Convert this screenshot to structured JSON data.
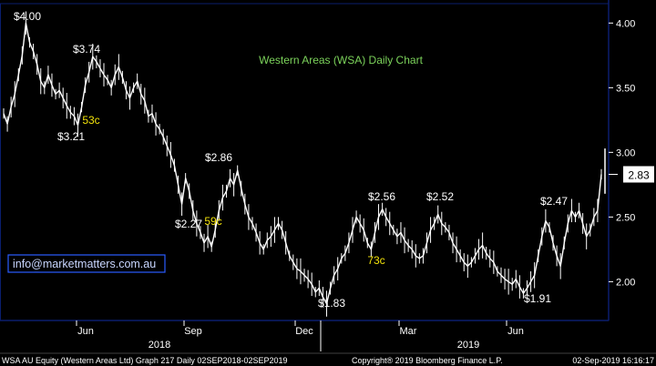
{
  "chart_data": {
    "type": "line",
    "title": "Western Areas (WSA) Daily Chart",
    "colors": {
      "background": "#000000",
      "plot_border": "#0a1e6e",
      "price_line": "#ffffff",
      "title": "#7cd35b",
      "price_label": "#ffffff",
      "move_label": "#f2e20a",
      "last_tag_bg": "#ffffff",
      "last_tag_text": "#000000",
      "link_box": "#2a5cff",
      "link_text": "#c8d6ff",
      "tick_text": "#ffffff",
      "footer_text": "#ffffff"
    },
    "y_axis": {
      "min": 1.7,
      "max": 4.15,
      "ticks": [
        "4.00",
        "3.50",
        "3.00",
        "2.50",
        "2.00"
      ],
      "position": "right"
    },
    "x_axis": {
      "months": [
        "Jun",
        "Sep",
        "Dec",
        "Mar",
        "Jun"
      ],
      "years": [
        "2018",
        "2019"
      ]
    },
    "series": [
      {
        "values": [
          3.3,
          3.22,
          3.35,
          3.45,
          3.6,
          3.75,
          4.0,
          3.85,
          3.78,
          3.68,
          3.55,
          3.5,
          3.6,
          3.52,
          3.45,
          3.48,
          3.42,
          3.36,
          3.31,
          3.28,
          3.21,
          3.35,
          3.52,
          3.62,
          3.74,
          3.7,
          3.65,
          3.6,
          3.56,
          3.5,
          3.6,
          3.66,
          3.58,
          3.48,
          3.42,
          3.5,
          3.55,
          3.45,
          3.4,
          3.28,
          3.3,
          3.22,
          3.18,
          3.12,
          3.05,
          2.98,
          2.9,
          2.75,
          2.6,
          2.8,
          2.7,
          2.55,
          2.45,
          2.38,
          2.3,
          2.35,
          2.27,
          2.4,
          2.55,
          2.65,
          2.7,
          2.8,
          2.75,
          2.86,
          2.72,
          2.6,
          2.5,
          2.45,
          2.38,
          2.3,
          2.25,
          2.32,
          2.35,
          2.4,
          2.45,
          2.4,
          2.3,
          2.2,
          2.15,
          2.1,
          2.08,
          2.05,
          2.02,
          1.98,
          1.92,
          1.95,
          1.88,
          1.83,
          1.95,
          2.05,
          2.1,
          2.18,
          2.22,
          2.3,
          2.4,
          2.5,
          2.45,
          2.4,
          2.3,
          2.25,
          2.38,
          2.5,
          2.56,
          2.5,
          2.45,
          2.4,
          2.35,
          2.38,
          2.32,
          2.28,
          2.25,
          2.2,
          2.18,
          2.2,
          2.3,
          2.4,
          2.45,
          2.52,
          2.45,
          2.42,
          2.38,
          2.3,
          2.25,
          2.2,
          2.15,
          2.12,
          2.15,
          2.2,
          2.25,
          2.28,
          2.22,
          2.18,
          2.15,
          2.08,
          2.05,
          2.02,
          2.0,
          1.98,
          2.02,
          1.96,
          1.91,
          1.95,
          2.0,
          2.05,
          2.2,
          2.35,
          2.47,
          2.42,
          2.3,
          2.2,
          2.12,
          2.3,
          2.45,
          2.55,
          2.5,
          2.55,
          2.45,
          2.35,
          2.4,
          2.5,
          2.55,
          2.83
        ]
      }
    ],
    "price_labels": [
      "$4.00",
      "$3.74",
      "$3.21",
      "$2.86",
      "$2.27",
      "$1.83",
      "$2.56",
      "$2.52",
      "$1.91",
      "$2.47"
    ],
    "move_labels": [
      "53c",
      "59c",
      "73c"
    ],
    "last_price": "2.83",
    "link_text": "info@marketmatters.com.au"
  },
  "footer": {
    "left": "WSA AU Equity (Western Areas Ltd) Graph 217  Daily 02SEP2018-02SEP2019",
    "center": "Copyright® 2019 Bloomberg Finance L.P.",
    "right": "02-Sep-2019 16:16:17"
  }
}
